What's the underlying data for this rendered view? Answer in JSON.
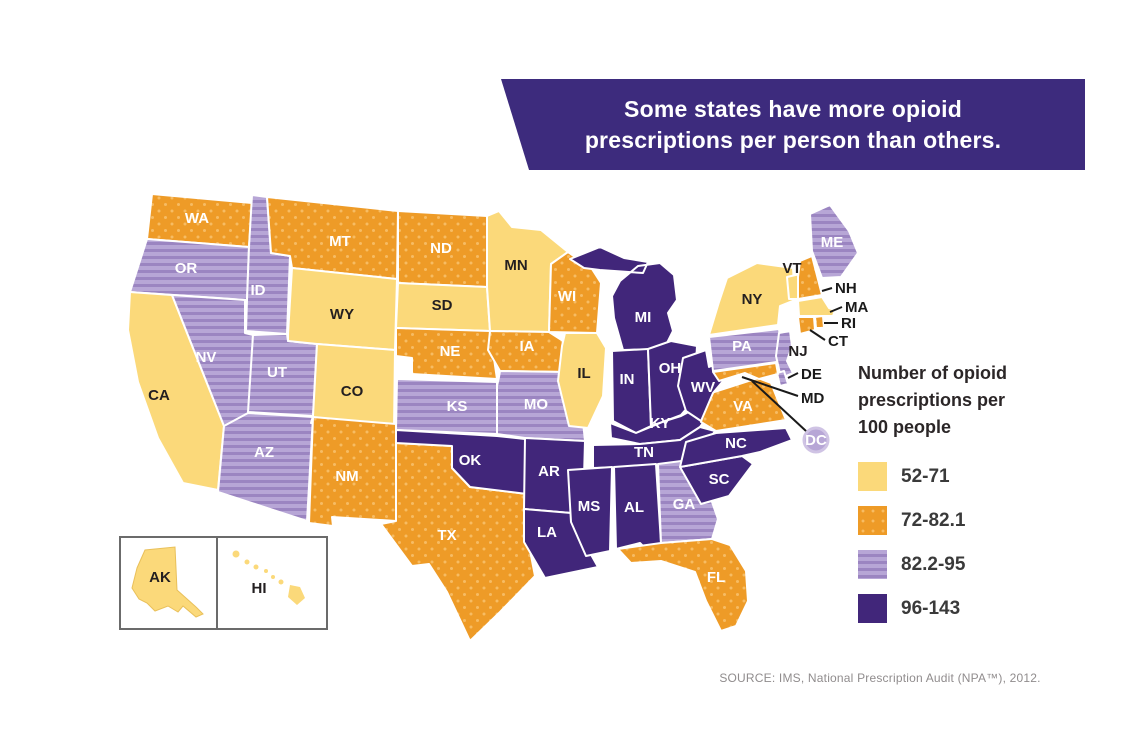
{
  "banner": {
    "line1": "Some states have more opioid",
    "line2": "prescriptions per person than others.",
    "bg_color": "#3d2b7d",
    "text_color": "#ffffff"
  },
  "legend": {
    "title_lines": [
      "Number of opioid",
      "prescriptions per",
      "100 people"
    ],
    "items": [
      {
        "key": "cat1",
        "label": "52-71",
        "pattern": "solid",
        "color": "#fbd97a"
      },
      {
        "key": "cat2",
        "label": "72-82.1",
        "pattern": "dots",
        "color": "#ee9b27",
        "dot_color": "#f7bc63"
      },
      {
        "key": "cat3",
        "label": "82.2-95",
        "pattern": "stripes",
        "color": "#b7a6d6",
        "stripe_color": "#9b85c1"
      },
      {
        "key": "cat4",
        "label": "96-143",
        "pattern": "solid",
        "color": "#41267a"
      }
    ]
  },
  "map": {
    "states": [
      {
        "abbr": "WA",
        "category": "cat2"
      },
      {
        "abbr": "OR",
        "category": "cat3"
      },
      {
        "abbr": "CA",
        "category": "cat1"
      },
      {
        "abbr": "ID",
        "category": "cat3"
      },
      {
        "abbr": "NV",
        "category": "cat3"
      },
      {
        "abbr": "UT",
        "category": "cat3"
      },
      {
        "abbr": "AZ",
        "category": "cat3"
      },
      {
        "abbr": "MT",
        "category": "cat2"
      },
      {
        "abbr": "WY",
        "category": "cat1"
      },
      {
        "abbr": "CO",
        "category": "cat1"
      },
      {
        "abbr": "NM",
        "category": "cat2"
      },
      {
        "abbr": "TX",
        "category": "cat2"
      },
      {
        "abbr": "ND",
        "category": "cat2"
      },
      {
        "abbr": "SD",
        "category": "cat1"
      },
      {
        "abbr": "NE",
        "category": "cat2"
      },
      {
        "abbr": "KS",
        "category": "cat3"
      },
      {
        "abbr": "OK",
        "category": "cat4"
      },
      {
        "abbr": "MN",
        "category": "cat1"
      },
      {
        "abbr": "IA",
        "category": "cat2"
      },
      {
        "abbr": "MO",
        "category": "cat3"
      },
      {
        "abbr": "AR",
        "category": "cat4"
      },
      {
        "abbr": "LA",
        "category": "cat4"
      },
      {
        "abbr": "WI",
        "category": "cat2"
      },
      {
        "abbr": "IL",
        "category": "cat1"
      },
      {
        "abbr": "MI",
        "category": "cat4"
      },
      {
        "abbr": "IN",
        "category": "cat4"
      },
      {
        "abbr": "OH",
        "category": "cat4"
      },
      {
        "abbr": "KY",
        "category": "cat4"
      },
      {
        "abbr": "TN",
        "category": "cat4"
      },
      {
        "abbr": "MS",
        "category": "cat4"
      },
      {
        "abbr": "AL",
        "category": "cat4"
      },
      {
        "abbr": "GA",
        "category": "cat3"
      },
      {
        "abbr": "FL",
        "category": "cat2"
      },
      {
        "abbr": "SC",
        "category": "cat4"
      },
      {
        "abbr": "NC",
        "category": "cat4"
      },
      {
        "abbr": "VA",
        "category": "cat2"
      },
      {
        "abbr": "WV",
        "category": "cat4"
      },
      {
        "abbr": "PA",
        "category": "cat3"
      },
      {
        "abbr": "NY",
        "category": "cat1"
      },
      {
        "abbr": "NJ",
        "category": "cat3"
      },
      {
        "abbr": "DE",
        "category": "cat3"
      },
      {
        "abbr": "MD",
        "category": "cat2"
      },
      {
        "abbr": "VT",
        "category": "cat1"
      },
      {
        "abbr": "NH",
        "category": "cat2"
      },
      {
        "abbr": "MA",
        "category": "cat1"
      },
      {
        "abbr": "RI",
        "category": "cat2"
      },
      {
        "abbr": "CT",
        "category": "cat2"
      },
      {
        "abbr": "ME",
        "category": "cat3"
      },
      {
        "abbr": "DC",
        "category": "cat3"
      }
    ],
    "insets": [
      {
        "abbr": "AK",
        "category": "cat1"
      },
      {
        "abbr": "HI",
        "category": "cat1"
      }
    ]
  },
  "source": "SOURCE: IMS, National Prescription Audit (NPA™), 2012."
}
